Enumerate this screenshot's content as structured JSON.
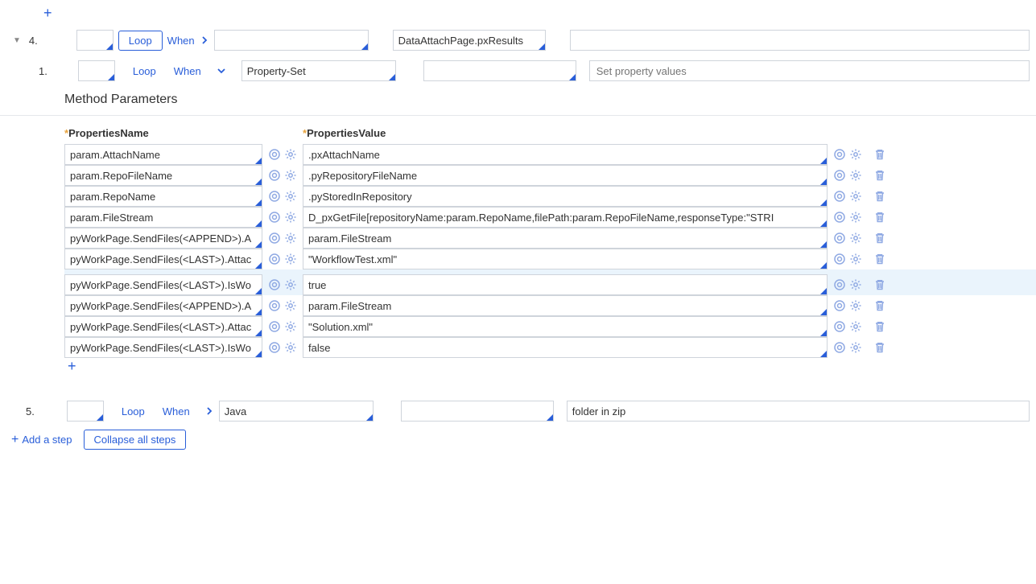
{
  "colors": {
    "link": "#295ed9",
    "border": "#cfd4db",
    "iconBlue": "#8fa9e3",
    "highlight": "#eaf4fc",
    "star": "#e8a33d",
    "placeholder": "#9aa2ad"
  },
  "topPlus": "+",
  "step4": {
    "num": "4.",
    "loop": "Loop",
    "when": "When",
    "page": "DataAttachPage.pxResults"
  },
  "step4_1": {
    "num": "1.",
    "loop": "Loop",
    "when": "When",
    "method": "Property-Set",
    "descPlaceholder": "Set property values"
  },
  "methodParamsTitle": "Method Parameters",
  "headers": {
    "name": "PropertiesName",
    "value": "PropertiesValue"
  },
  "rows": [
    {
      "name": "param.AttachName",
      "value": ".pxAttachName",
      "hl": false
    },
    {
      "name": "param.RepoFileName",
      "value": ".pyRepositoryFileName",
      "hl": false
    },
    {
      "name": "param.RepoName",
      "value": ".pyStoredInRepository",
      "hl": false
    },
    {
      "name": "param.FileStream",
      "value": "D_pxGetFile[repositoryName:param.RepoName,filePath:param.RepoFileName,responseType:\"STRI",
      "hl": false
    },
    {
      "name": "pyWorkPage.SendFiles(<APPEND>).A",
      "value": "param.FileStream",
      "hl": false
    },
    {
      "name": "pyWorkPage.SendFiles(<LAST>).Attac",
      "value": "\"WorkflowTest.xml\"",
      "hl": false
    },
    {
      "name": "pyWorkPage.SendFiles(<LAST>).IsWo",
      "value": "true",
      "hl": true
    },
    {
      "name": "pyWorkPage.SendFiles(<APPEND>).A",
      "value": "param.FileStream",
      "hl": false
    },
    {
      "name": "pyWorkPage.SendFiles(<LAST>).Attac",
      "value": "\"Solution.xml\"",
      "hl": false
    },
    {
      "name": "pyWorkPage.SendFiles(<LAST>).IsWo",
      "value": "false",
      "hl": false
    }
  ],
  "bottomPlus": "+",
  "step5": {
    "num": "5.",
    "loop": "Loop",
    "when": "When",
    "method": "Java",
    "desc": "folder in zip"
  },
  "footer": {
    "addStep": "Add a step",
    "collapse": "Collapse all steps"
  }
}
